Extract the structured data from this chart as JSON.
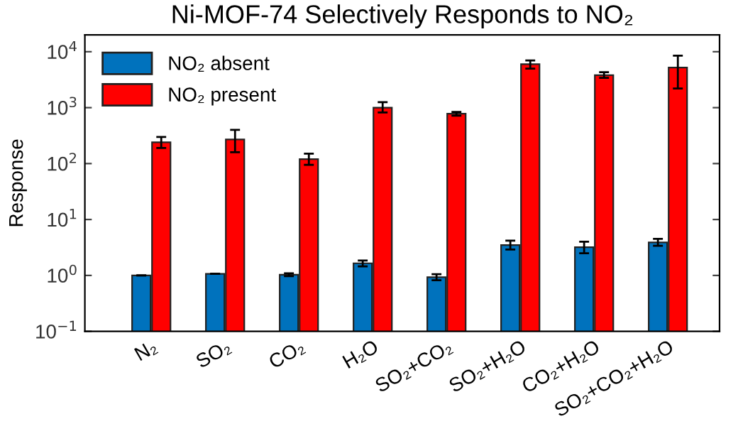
{
  "chart_data": {
    "type": "bar",
    "title": "Ni-MOF-74 Selectively Responds to NO₂",
    "ylabel": "Response",
    "categories": [
      "N₂",
      "SO₂",
      "CO₂",
      "H₂O",
      "SO₂+CO₂",
      "SO₂+H₂O",
      "CO₂+H₂O",
      "SO₂+CO₂+H₂O"
    ],
    "series": [
      {
        "name": "NO₂ absent",
        "color": "#0072bd",
        "values": [
          1.0,
          1.07,
          1.03,
          1.65,
          0.93,
          3.5,
          3.2,
          3.9
        ],
        "errors": [
          null,
          null,
          [
            0.97,
            1.09
          ],
          [
            1.45,
            1.85
          ],
          [
            0.82,
            1.05
          ],
          [
            2.9,
            4.2
          ],
          [
            2.5,
            4.0
          ],
          [
            3.4,
            4.5
          ]
        ]
      },
      {
        "name": "NO₂ present",
        "color": "#ff0000",
        "values": [
          240,
          270,
          120,
          1000,
          780,
          6000,
          3800,
          5200
        ],
        "errors": [
          [
            190,
            300
          ],
          [
            160,
            400
          ],
          [
            95,
            150
          ],
          [
            820,
            1250
          ],
          [
            720,
            840
          ],
          [
            5000,
            7000
          ],
          [
            3400,
            4300
          ],
          [
            2200,
            8500
          ]
        ]
      }
    ],
    "log": true,
    "ylim": [
      0.1,
      20000
    ],
    "yticks": [
      {
        "value": 0.1,
        "label": "10$^{−1}$"
      },
      {
        "value": 1,
        "label": "10$^{0}$"
      },
      {
        "value": 10,
        "label": "10$^{1}$"
      },
      {
        "value": 100,
        "label": "10$^{2}$"
      },
      {
        "value": 1000,
        "label": "10$^{3}$"
      },
      {
        "value": 10000,
        "label": "10$^{4}$"
      }
    ],
    "legend": "top left",
    "grid": false
  }
}
